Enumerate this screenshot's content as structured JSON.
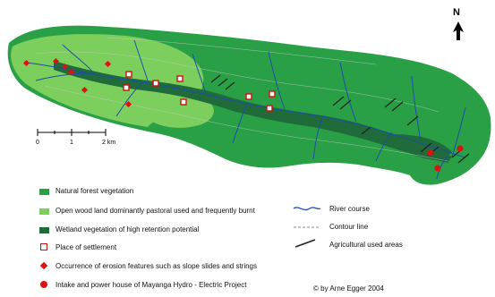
{
  "north_label": "N",
  "scale_bar": {
    "tick_labels": [
      "0",
      "1",
      "2 km"
    ]
  },
  "legend": {
    "items": [
      {
        "label": "Natural forest vegetation",
        "color": "#2aa046"
      },
      {
        "label": "Open wood land dominantly pastoral used and frequently burnt",
        "color": "#7ccf5c"
      },
      {
        "label": "Wetland vegetation of high retention potential",
        "color": "#1f6b3a"
      },
      {
        "label": "Place of settlement",
        "color": "#cc1111"
      },
      {
        "label": "Occurrence of erosion features such as slope slides and strings",
        "color": "#dd1111"
      },
      {
        "label": "Intake and power house of Mayanga Hydro - Electric Project",
        "color": "#dd1111"
      }
    ],
    "line_items": [
      {
        "label": "River course",
        "color": "#1a3d9a"
      },
      {
        "label": "Contour line",
        "color": "#888888"
      },
      {
        "label": "Agricultural used areas",
        "color": "#222222"
      }
    ]
  },
  "credit": "© by Arne Egger 2004",
  "colors": {
    "forest": "#2aa046",
    "open_wood": "#7ccf5c",
    "wetland": "#1f6b3a",
    "river": "#1c4db0"
  },
  "icons": [
    "north-arrow-icon",
    "settlement-square-icon",
    "erosion-diamond-icon",
    "intake-dot-icon"
  ]
}
